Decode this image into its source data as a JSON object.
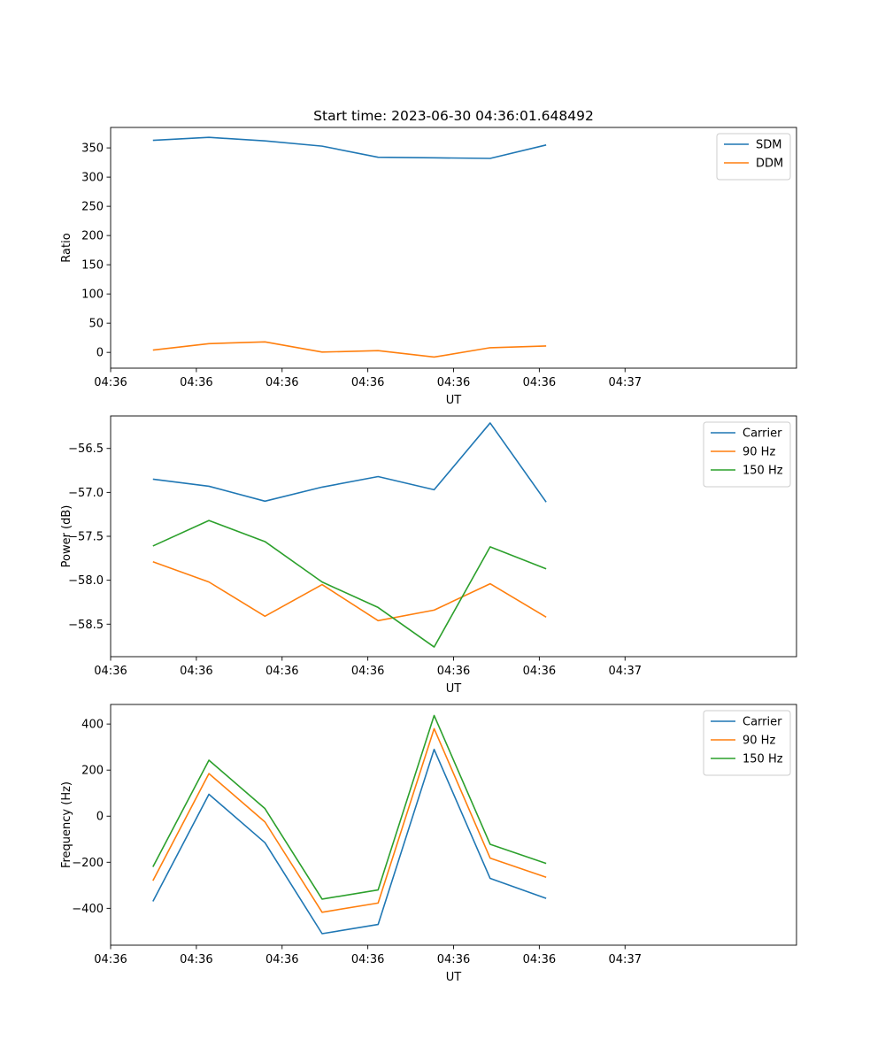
{
  "figure_title": "Start time: 2023-06-30 04:36:01.648492",
  "chart_data": [
    {
      "type": "line",
      "title": "Start time: 2023-06-30 04:36:01.648492",
      "xlabel": "UT",
      "ylabel": "Ratio",
      "xlim": [
        0,
        6
      ],
      "ylim": [
        -27,
        385
      ],
      "x_ticks": [
        0,
        0.75,
        1.5,
        2.25,
        3,
        3.75,
        4.5
      ],
      "x_tick_labels": [
        "04:36",
        "04:36",
        "04:36",
        "04:36",
        "04:36",
        "04:36",
        "04:37"
      ],
      "y_ticks": [
        0,
        50,
        100,
        150,
        200,
        250,
        300,
        350
      ],
      "y_tick_labels": [
        "0",
        "50",
        "100",
        "150",
        "200",
        "250",
        "300",
        "350"
      ],
      "legend_position": "top-right",
      "x": [
        0.37,
        0.86,
        1.35,
        1.85,
        2.34,
        2.83,
        3.32,
        3.81
      ],
      "series": [
        {
          "name": "SDM",
          "color": "#1f77b4",
          "values": [
            363,
            368,
            362,
            353,
            334,
            333,
            332,
            355
          ]
        },
        {
          "name": "DDM",
          "color": "#ff7f0e",
          "values": [
            4,
            15,
            18,
            0.5,
            3,
            -8,
            8,
            11
          ]
        }
      ]
    },
    {
      "type": "line",
      "xlabel": "UT",
      "ylabel": "Power (dB)",
      "xlim": [
        0,
        6
      ],
      "ylim": [
        -58.87,
        -56.13
      ],
      "x_ticks": [
        0,
        0.75,
        1.5,
        2.25,
        3,
        3.75,
        4.5
      ],
      "x_tick_labels": [
        "04:36",
        "04:36",
        "04:36",
        "04:36",
        "04:36",
        "04:36",
        "04:37"
      ],
      "y_ticks": [
        -58.5,
        -58.0,
        -57.5,
        -57.0,
        -56.5
      ],
      "y_tick_labels": [
        "−58.5",
        "−58.0",
        "−57.5",
        "−57.0",
        "−56.5"
      ],
      "legend_position": "top-right",
      "x": [
        0.37,
        0.86,
        1.35,
        1.85,
        2.34,
        2.83,
        3.32,
        3.81
      ],
      "series": [
        {
          "name": "Carrier",
          "color": "#1f77b4",
          "values": [
            -56.85,
            -56.93,
            -57.1,
            -56.94,
            -56.82,
            -56.97,
            -56.21,
            -57.11
          ]
        },
        {
          "name": "90 Hz",
          "color": "#ff7f0e",
          "values": [
            -57.79,
            -58.02,
            -58.41,
            -58.05,
            -58.46,
            -58.34,
            -58.04,
            -58.42
          ]
        },
        {
          "name": "150 Hz",
          "color": "#2ca02c",
          "values": [
            -57.61,
            -57.32,
            -57.56,
            -58.02,
            -58.31,
            -58.76,
            -57.62,
            -57.87
          ]
        }
      ]
    },
    {
      "type": "line",
      "xlabel": "UT",
      "ylabel": "Frequency (Hz)",
      "xlim": [
        0,
        6
      ],
      "ylim": [
        -560,
        485
      ],
      "x_ticks": [
        0,
        0.75,
        1.5,
        2.25,
        3,
        3.75,
        4.5
      ],
      "x_tick_labels": [
        "04:36",
        "04:36",
        "04:36",
        "04:36",
        "04:36",
        "04:36",
        "04:37"
      ],
      "y_ticks": [
        -400,
        -200,
        0,
        200,
        400
      ],
      "y_tick_labels": [
        "−400",
        "−200",
        "0",
        "200",
        "400"
      ],
      "legend_position": "top-right",
      "x": [
        0.37,
        0.86,
        1.35,
        1.85,
        2.34,
        2.83,
        3.32,
        3.81
      ],
      "series": [
        {
          "name": "Carrier",
          "color": "#1f77b4",
          "values": [
            -370,
            95,
            -115,
            -510,
            -470,
            290,
            -270,
            -357
          ]
        },
        {
          "name": "90 Hz",
          "color": "#ff7f0e",
          "values": [
            -280,
            185,
            -25,
            -417,
            -377,
            380,
            -182,
            -265
          ]
        },
        {
          "name": "150 Hz",
          "color": "#2ca02c",
          "values": [
            -220,
            243,
            33,
            -360,
            -320,
            437,
            -122,
            -205
          ]
        }
      ]
    }
  ]
}
